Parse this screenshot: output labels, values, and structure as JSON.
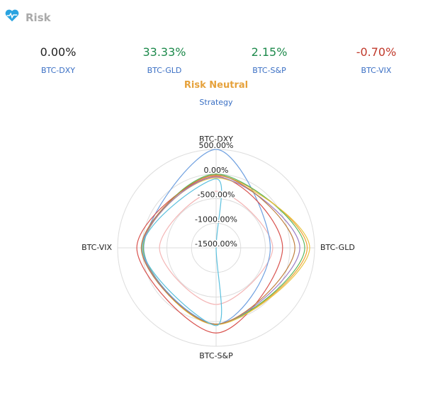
{
  "header": {
    "title": "Risk"
  },
  "stats": [
    {
      "value": "0.00%",
      "label": "BTC-DXY",
      "color": "#222222"
    },
    {
      "value": "33.33%",
      "label": "BTC-GLD",
      "color": "#1e8a4c"
    },
    {
      "value": "2.15%",
      "label": "BTC-S&P",
      "color": "#1e8a4c"
    },
    {
      "value": "-0.70%",
      "label": "BTC-VIX",
      "color": "#c0392b"
    }
  ],
  "status": "Risk Neutral",
  "strategy": "Strategy",
  "chart_data": {
    "type": "radar",
    "categories": [
      "BTC-DXY",
      "BTC-GLD",
      "BTC-S&P",
      "BTC-VIX"
    ],
    "ylim": [
      -1500,
      500
    ],
    "yticks": [
      {
        "value": 500,
        "label": "500.00%"
      },
      {
        "value": 0,
        "label": "0.00%"
      },
      {
        "value": -500,
        "label": "-500.00%"
      },
      {
        "value": -1000,
        "label": "-1000.00%"
      },
      {
        "value": -1500,
        "label": "-1500.00%"
      }
    ],
    "grid": true,
    "series": [
      {
        "color": "#f4b6b6",
        "values": [
          -350,
          -350,
          -350,
          -350
        ]
      },
      {
        "color": "#6fa0e0",
        "values": [
          500,
          -400,
          50,
          -30
        ]
      },
      {
        "color": "#d9534f",
        "values": [
          -50,
          -150,
          230,
          110
        ]
      },
      {
        "color": "#f0a030",
        "values": [
          -30,
          350,
          50,
          0
        ]
      },
      {
        "color": "#5cb85c",
        "values": [
          0,
          300,
          50,
          -20
        ]
      },
      {
        "color": "#e8c440",
        "values": [
          -80,
          400,
          60,
          -10
        ]
      },
      {
        "color": "#9b7cc4",
        "values": [
          -60,
          200,
          50,
          0
        ]
      },
      {
        "color": "#c08040",
        "values": [
          -20,
          100,
          50,
          20
        ]
      },
      {
        "color": "#5bc0de",
        "values": [
          -100,
          -1500,
          80,
          0
        ]
      }
    ]
  }
}
